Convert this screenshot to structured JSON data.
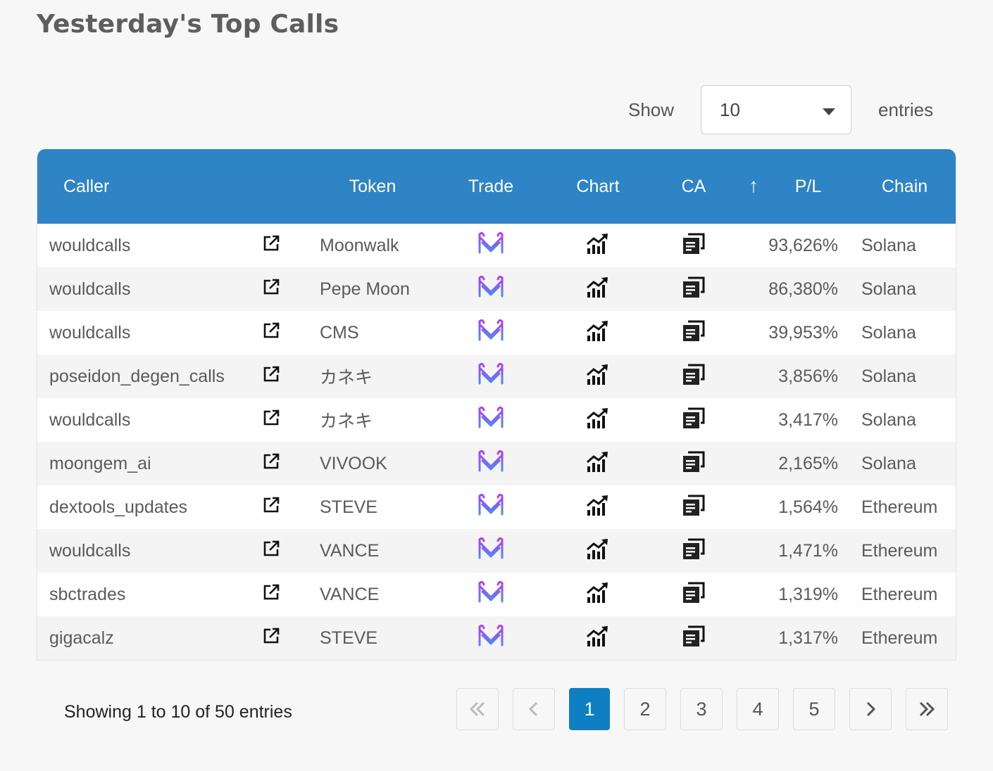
{
  "page": {
    "title": "Yesterday's Top Calls"
  },
  "length_control": {
    "show_label": "Show",
    "selected": "10",
    "entries_label": "entries"
  },
  "table": {
    "columns": {
      "caller": "Caller",
      "token": "Token",
      "trade": "Trade",
      "chart": "Chart",
      "ca": "CA",
      "pl": "P/L",
      "chain": "Chain"
    },
    "sort_indicator": "↑",
    "rows": [
      {
        "caller": "wouldcalls",
        "token": "Moonwalk",
        "pl": "93,626%",
        "chain": "Solana"
      },
      {
        "caller": "wouldcalls",
        "token": "Pepe Moon",
        "pl": "86,380%",
        "chain": "Solana"
      },
      {
        "caller": "wouldcalls",
        "token": "CMS",
        "pl": "39,953%",
        "chain": "Solana"
      },
      {
        "caller": "poseidon_degen_calls",
        "token": "カネキ",
        "pl": "3,856%",
        "chain": "Solana"
      },
      {
        "caller": "wouldcalls",
        "token": "カネキ",
        "pl": "3,417%",
        "chain": "Solana"
      },
      {
        "caller": "moongem_ai",
        "token": "VIVOOK",
        "pl": "2,165%",
        "chain": "Solana"
      },
      {
        "caller": "dextools_updates",
        "token": "STEVE",
        "pl": "1,564%",
        "chain": "Ethereum"
      },
      {
        "caller": "wouldcalls",
        "token": "VANCE",
        "pl": "1,471%",
        "chain": "Ethereum"
      },
      {
        "caller": "sbctrades",
        "token": "VANCE",
        "pl": "1,319%",
        "chain": "Ethereum"
      },
      {
        "caller": "gigacalz",
        "token": "STEVE",
        "pl": "1,317%",
        "chain": "Ethereum"
      }
    ],
    "icons": {
      "link": "external-link-icon",
      "trade": "trade-logo-icon",
      "chart": "chart-growth-icon",
      "ca": "copy-icon"
    }
  },
  "footer": {
    "info": "Showing 1 to 10 of 50 entries",
    "pages": [
      "1",
      "2",
      "3",
      "4",
      "5"
    ],
    "current_page": "1"
  },
  "colors": {
    "header": "#2e84c4",
    "active_page": "#0e7fc2"
  }
}
